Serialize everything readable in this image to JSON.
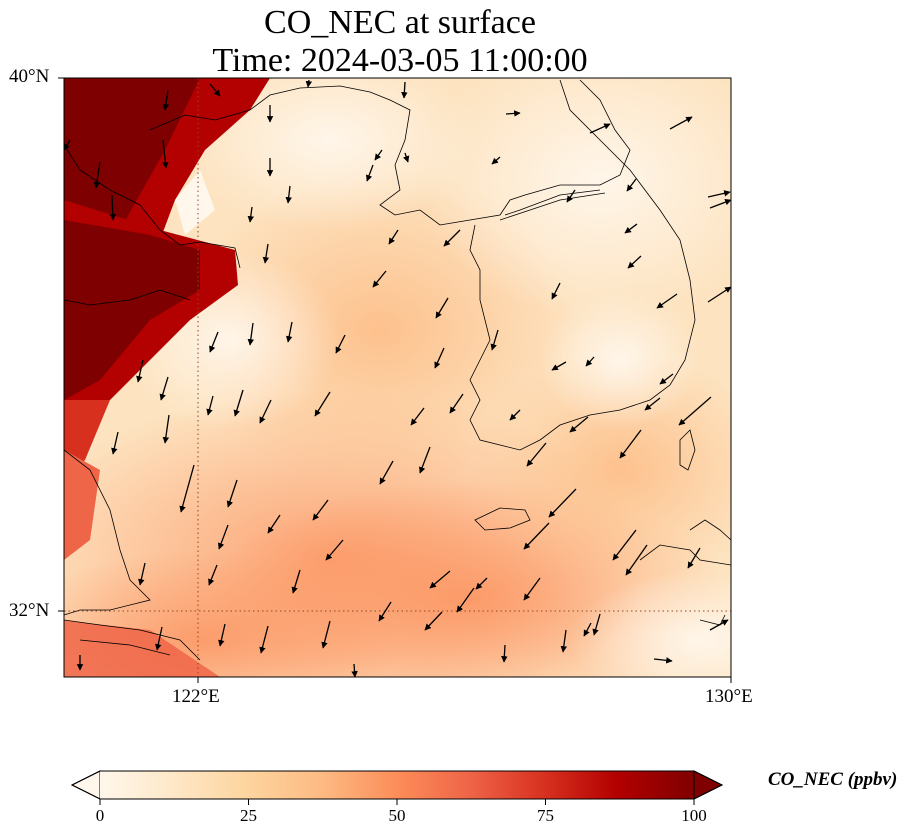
{
  "figure": {
    "title_line1": "CO_NEC at surface",
    "title_line2": "Time: 2024-03-05 11:00:00"
  },
  "map": {
    "lon_range": [
      120,
      130
    ],
    "lat_range": [
      31,
      40
    ],
    "gridlines": {
      "lon": 122,
      "lat": 32,
      "style": "dotted"
    },
    "lat_ticks": [
      {
        "value": 40,
        "label": "40°N"
      },
      {
        "value": 32,
        "label": "32°N"
      }
    ],
    "lon_ticks": [
      {
        "value": 122,
        "label": "122°E"
      },
      {
        "value": 130,
        "label": "130°E"
      }
    ],
    "field": "CO_NEC",
    "colormap": "OrRd",
    "overlay": "wind vectors"
  },
  "colorbar": {
    "label": "CO_NEC (ppbv)",
    "min": 0,
    "max": 100,
    "extend": "both",
    "ticks": [
      {
        "value": 0,
        "label": "0"
      },
      {
        "value": 25,
        "label": "25"
      },
      {
        "value": 50,
        "label": "50"
      },
      {
        "value": 75,
        "label": "75"
      },
      {
        "value": 100,
        "label": "100"
      }
    ],
    "colors": [
      "#fff7ec",
      "#fee8c8",
      "#fdd49e",
      "#fdbb84",
      "#fc8d59",
      "#ef6548",
      "#d7301f",
      "#b30000",
      "#7f0000"
    ]
  }
}
